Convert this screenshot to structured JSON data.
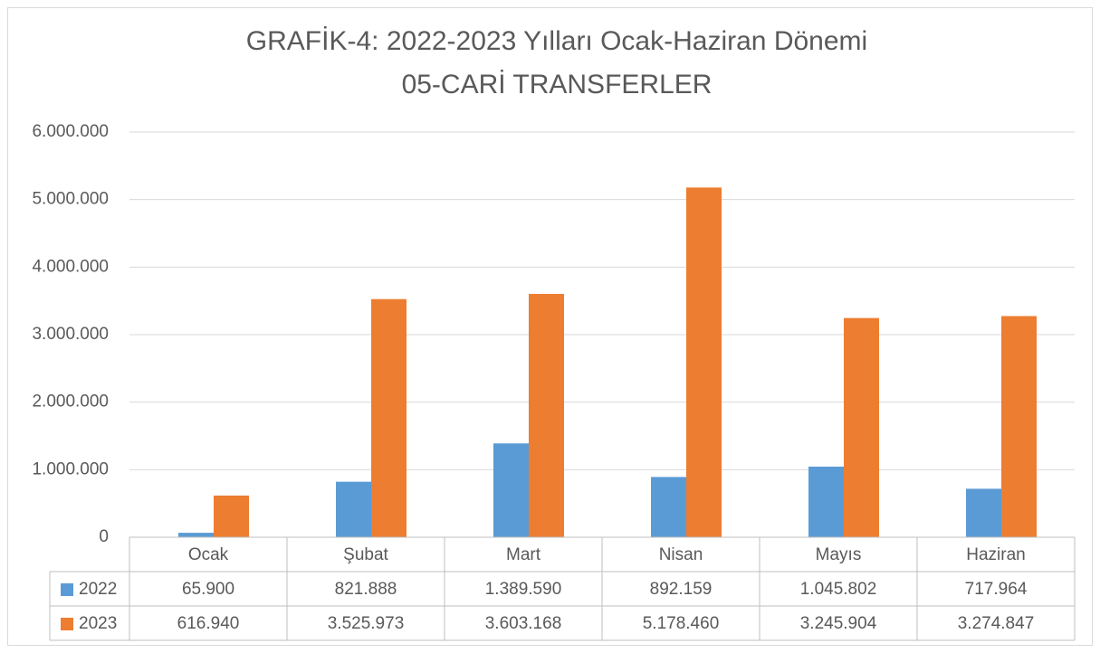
{
  "chart_data": {
    "type": "bar",
    "title": "GRAFİK-4: 2022-2023 Yılları Ocak-Haziran Dönemi",
    "subtitle": "05-CARİ TRANSFERLER",
    "categories": [
      "Ocak",
      "Şubat",
      "Mart",
      "Nisan",
      "Mayıs",
      "Haziran"
    ],
    "series": [
      {
        "name": "2022",
        "color": "#5b9bd5",
        "values": [
          65900,
          821888,
          1389590,
          892159,
          1045802,
          717964
        ],
        "value_labels": [
          "65.900",
          "821.888",
          "1.389.590",
          "892.159",
          "1.045.802",
          "717.964"
        ]
      },
      {
        "name": "2023",
        "color": "#ed7d31",
        "values": [
          616940,
          3525973,
          3603168,
          5178460,
          3245904,
          3274847
        ],
        "value_labels": [
          "616.940",
          "3.525.973",
          "3.603.168",
          "5.178.460",
          "3.245.904",
          "3.274.847"
        ]
      }
    ],
    "ylim": [
      0,
      6000000
    ],
    "yticks": [
      0,
      {
        "value": 1000000,
        "label": "1.000.000"
      },
      {
        "value": 2000000,
        "label": "2.000.000"
      },
      {
        "value": 3000000,
        "label": "3.000.000"
      },
      {
        "value": 4000000,
        "label": "4.000.000"
      },
      {
        "value": 5000000,
        "label": "5.000.000"
      },
      {
        "value": 6000000,
        "label": "6.000.000"
      }
    ],
    "grid": true
  }
}
